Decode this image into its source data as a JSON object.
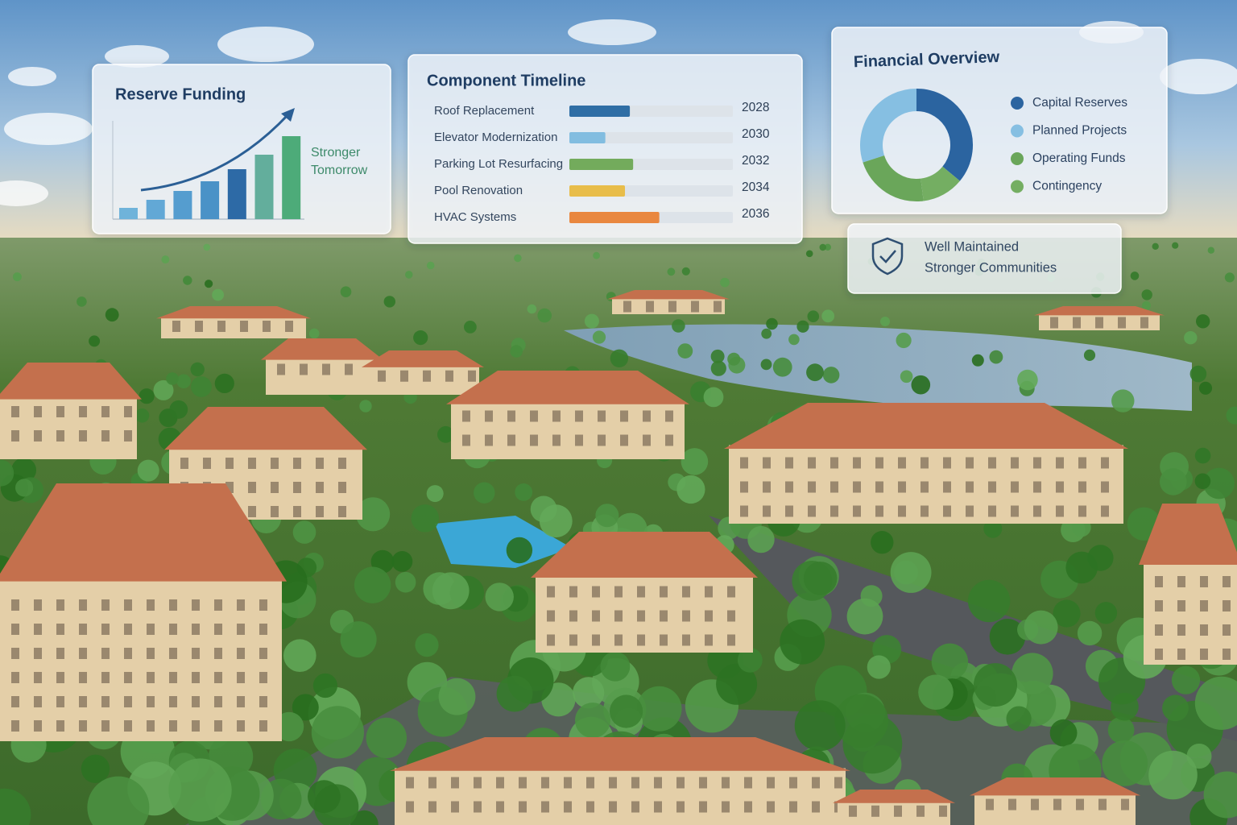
{
  "chart_data": [
    {
      "type": "bar",
      "title": "Reserve Funding",
      "values": [
        14,
        24,
        35,
        47,
        62,
        80,
        103
      ],
      "colors": [
        "#6fb3da",
        "#62a8d6",
        "#559dcf",
        "#4a92c7",
        "#2d6aa6",
        "#63ae9c",
        "#4dab79"
      ],
      "annotation": [
        "Stronger",
        "Tomorrow"
      ]
    },
    {
      "type": "timeline",
      "title": "Component Timeline",
      "categories": [
        "Roof Replacement",
        "Elevator Modernization",
        "Parking Lot Resurfacing",
        "Pool Renovation",
        "HVAC Systems"
      ],
      "values": [
        37,
        22,
        39,
        34,
        55
      ],
      "xlim": [
        0,
        100
      ],
      "colors": [
        "#2f6ea5",
        "#82bde0",
        "#73ab5c",
        "#e8bd4a",
        "#e9873f"
      ],
      "years": [
        2028,
        2030,
        2032,
        2034,
        2036
      ]
    },
    {
      "type": "donut",
      "title": "Financial Overview",
      "categories": [
        "Capital Reserves",
        "Planned Projects",
        "Operating Funds",
        "Contingency"
      ],
      "values": [
        36,
        30,
        22,
        12
      ],
      "colors": [
        "#2b64a0",
        "#86bfe2",
        "#6aa65a",
        "#74ae62"
      ]
    }
  ],
  "badge": {
    "lines": [
      "Well Maintained",
      "Stronger Communities"
    ]
  }
}
